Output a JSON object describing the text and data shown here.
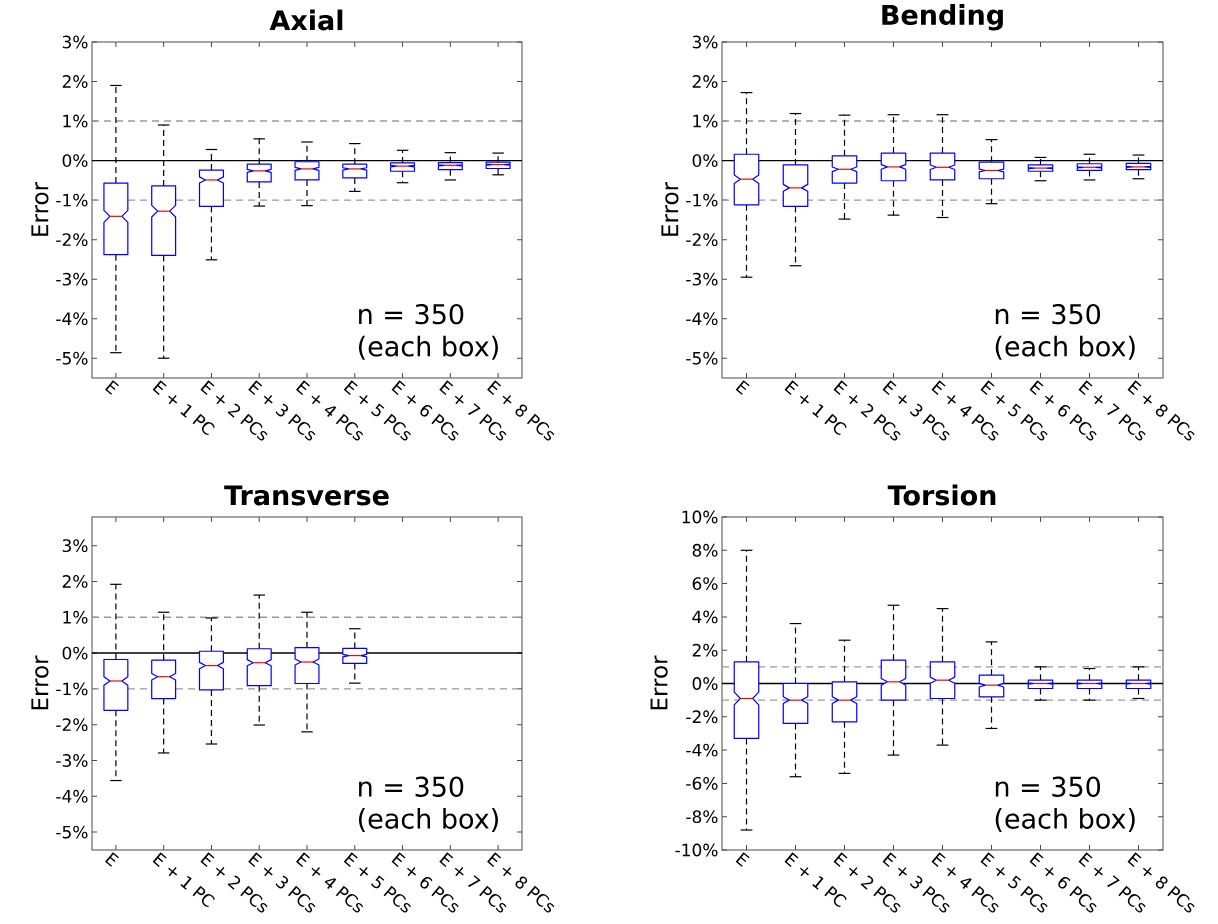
{
  "chart_data": [
    {
      "type": "box",
      "title": "Axial",
      "ylabel": "Error",
      "color": "#0000ff",
      "categories": [
        "E",
        "E + 1 PC",
        "E + 2 PCs",
        "E + 3 PCs",
        "E + 4 PCs",
        "E + 5 PCs",
        "E + 6 PCs",
        "E + 7 PCs",
        "E + 8 PCs"
      ],
      "boxes": [
        {
          "low": -4.86,
          "q1": -2.38,
          "median": -1.41,
          "q3": -0.57,
          "high": 1.9
        },
        {
          "low": -5.0,
          "q1": -2.4,
          "median": -1.28,
          "q3": -0.64,
          "high": 0.9
        },
        {
          "low": -2.51,
          "q1": -1.16,
          "median": -0.49,
          "q3": -0.24,
          "high": 0.28
        },
        {
          "low": -1.15,
          "q1": -0.54,
          "median": -0.26,
          "q3": -0.09,
          "high": 0.55
        },
        {
          "low": -1.14,
          "q1": -0.49,
          "median": -0.21,
          "q3": -0.03,
          "high": 0.47
        },
        {
          "low": -0.78,
          "q1": -0.44,
          "median": -0.21,
          "q3": -0.09,
          "high": 0.43
        },
        {
          "low": -0.56,
          "q1": -0.27,
          "median": -0.14,
          "q3": -0.06,
          "high": 0.26
        },
        {
          "low": -0.49,
          "q1": -0.23,
          "median": -0.12,
          "q3": -0.05,
          "high": 0.2
        },
        {
          "low": -0.36,
          "q1": -0.2,
          "median": -0.1,
          "q3": -0.04,
          "high": 0.19
        }
      ],
      "ylim": [
        -5.5,
        3
      ],
      "yticks": [
        {
          "value": -5,
          "label": "-5%"
        },
        {
          "value": -4,
          "label": "-4%"
        },
        {
          "value": -3,
          "label": "-3%"
        },
        {
          "value": -2,
          "label": "-2%"
        },
        {
          "value": -1,
          "label": "-1%"
        },
        {
          "value": 0,
          "label": "0%"
        },
        {
          "value": 1,
          "label": "1%"
        },
        {
          "value": 2,
          "label": "2%"
        },
        {
          "value": 3,
          "label": "3%"
        }
      ],
      "ref_lines": [
        {
          "axis": "y",
          "value": 1,
          "color": "#999999",
          "line_style": "dashed"
        },
        {
          "axis": "y",
          "value": -1,
          "color": "#999999",
          "line_style": "dashed"
        },
        {
          "axis": "y",
          "value": 0,
          "color": "#000000",
          "line_style": "solid"
        }
      ],
      "annotations": [
        "n = 350",
        "(each box)"
      ]
    },
    {
      "type": "box",
      "title": "Bending",
      "ylabel": "Error",
      "color": "#0000ff",
      "categories": [
        "E",
        "E + 1 PC",
        "E + 2 PCs",
        "E + 3 PCs",
        "E + 4 PCs",
        "E + 5 PCs",
        "E + 6 PCs",
        "E + 7 PCs",
        "E + 8 PCs"
      ],
      "boxes": [
        {
          "low": -2.95,
          "q1": -1.12,
          "median": -0.47,
          "q3": 0.16,
          "high": 1.72
        },
        {
          "low": -2.66,
          "q1": -1.16,
          "median": -0.69,
          "q3": -0.11,
          "high": 1.19
        },
        {
          "low": -1.48,
          "q1": -0.57,
          "median": -0.22,
          "q3": 0.12,
          "high": 1.15
        },
        {
          "low": -1.38,
          "q1": -0.51,
          "median": -0.16,
          "q3": 0.19,
          "high": 1.16
        },
        {
          "low": -1.44,
          "q1": -0.49,
          "median": -0.17,
          "q3": 0.19,
          "high": 1.16
        },
        {
          "low": -1.09,
          "q1": -0.46,
          "median": -0.25,
          "q3": -0.04,
          "high": 0.53
        },
        {
          "low": -0.51,
          "q1": -0.27,
          "median": -0.19,
          "q3": -0.11,
          "high": 0.08
        },
        {
          "low": -0.49,
          "q1": -0.25,
          "median": -0.17,
          "q3": -0.08,
          "high": 0.16
        },
        {
          "low": -0.46,
          "q1": -0.23,
          "median": -0.16,
          "q3": -0.07,
          "high": 0.14
        }
      ],
      "ylim": [
        -5.5,
        3
      ],
      "yticks": [
        {
          "value": -5,
          "label": "-5%"
        },
        {
          "value": -4,
          "label": "-4%"
        },
        {
          "value": -3,
          "label": "-3%"
        },
        {
          "value": -2,
          "label": "-2%"
        },
        {
          "value": -1,
          "label": "-1%"
        },
        {
          "value": 0,
          "label": "0%"
        },
        {
          "value": 1,
          "label": "1%"
        },
        {
          "value": 2,
          "label": "2%"
        },
        {
          "value": 3,
          "label": "3%"
        }
      ],
      "ref_lines": [
        {
          "axis": "y",
          "value": 1,
          "color": "#999999",
          "line_style": "dashed"
        },
        {
          "axis": "y",
          "value": -1,
          "color": "#999999",
          "line_style": "dashed"
        },
        {
          "axis": "y",
          "value": 0,
          "color": "#000000",
          "line_style": "solid"
        }
      ],
      "annotations": [
        "n = 350",
        "(each box)"
      ]
    },
    {
      "type": "box",
      "title": "Transverse",
      "ylabel": "Error",
      "color": "#0000ff",
      "categories": [
        "E",
        "E + 1 PC",
        "E + 2 PCs",
        "E + 3 PCs",
        "E + 4 PCs",
        "E + 5 PCs",
        "E + 6 PCs",
        "E + 7 PCs",
        "E + 8 PCs"
      ],
      "boxes": [
        {
          "low": -3.56,
          "q1": -1.6,
          "median": -0.78,
          "q3": -0.18,
          "high": 1.92
        },
        {
          "low": -2.79,
          "q1": -1.27,
          "median": -0.66,
          "q3": -0.2,
          "high": 1.14
        },
        {
          "low": -2.54,
          "q1": -1.03,
          "median": -0.35,
          "q3": 0.05,
          "high": 0.98
        },
        {
          "low": -2.01,
          "q1": -0.91,
          "median": -0.27,
          "q3": 0.12,
          "high": 1.62
        },
        {
          "low": -2.2,
          "q1": -0.85,
          "median": -0.25,
          "q3": 0.15,
          "high": 1.14
        },
        {
          "low": -0.84,
          "q1": -0.29,
          "median": -0.07,
          "q3": 0.13,
          "high": 0.68
        },
        null,
        null,
        null
      ],
      "ylim": [
        -5.5,
        3.8
      ],
      "yticks": [
        {
          "value": -5,
          "label": "-5%"
        },
        {
          "value": -4,
          "label": "-4%"
        },
        {
          "value": -3,
          "label": "-3%"
        },
        {
          "value": -2,
          "label": "-2%"
        },
        {
          "value": -1,
          "label": "-1%"
        },
        {
          "value": 0,
          "label": "0%"
        },
        {
          "value": 1,
          "label": "1%"
        },
        {
          "value": 2,
          "label": "2%"
        },
        {
          "value": 3,
          "label": "3%"
        }
      ],
      "ref_lines": [
        {
          "axis": "y",
          "value": 1,
          "color": "#999999",
          "line_style": "dashed"
        },
        {
          "axis": "y",
          "value": -1,
          "color": "#999999",
          "line_style": "dashed"
        },
        {
          "axis": "y",
          "value": 0,
          "color": "#000000",
          "line_style": "solid"
        }
      ],
      "annotations": [
        "n = 350",
        "(each box)"
      ]
    },
    {
      "type": "box",
      "title": "Torsion",
      "ylabel": "Error",
      "color": "#0000ff",
      "categories": [
        "E",
        "E + 1 PC",
        "E + 2 PCs",
        "E + 3 PCs",
        "E + 4 PCs",
        "E + 5 PCs",
        "E + 6 PCs",
        "E + 7 PCs",
        "E + 8 PCs"
      ],
      "boxes": [
        {
          "low": -8.8,
          "q1": -3.3,
          "median": -0.9,
          "q3": 1.3,
          "high": 8.0
        },
        {
          "low": -5.6,
          "q1": -2.4,
          "median": -1.0,
          "q3": 0.0,
          "high": 3.6
        },
        {
          "low": -5.4,
          "q1": -2.3,
          "median": -1.0,
          "q3": 0.1,
          "high": 2.6
        },
        {
          "low": -4.3,
          "q1": -1.0,
          "median": 0.1,
          "q3": 1.4,
          "high": 4.7
        },
        {
          "low": -3.7,
          "q1": -0.9,
          "median": 0.2,
          "q3": 1.3,
          "high": 4.5
        },
        {
          "low": -2.7,
          "q1": -0.8,
          "median": -0.1,
          "q3": 0.5,
          "high": 2.5
        },
        {
          "low": -1.0,
          "q1": -0.3,
          "median": 0.0,
          "q3": 0.2,
          "high": 1.0
        },
        {
          "low": -1.0,
          "q1": -0.3,
          "median": 0.0,
          "q3": 0.2,
          "high": 0.9
        },
        {
          "low": -0.9,
          "q1": -0.3,
          "median": 0.0,
          "q3": 0.2,
          "high": 1.0
        }
      ],
      "ylim": [
        -10,
        10
      ],
      "yticks": [
        {
          "value": -10,
          "label": "-10%"
        },
        {
          "value": -8,
          "label": "-8%"
        },
        {
          "value": -6,
          "label": "-6%"
        },
        {
          "value": -4,
          "label": "-4%"
        },
        {
          "value": -2,
          "label": "-2%"
        },
        {
          "value": 0,
          "label": "0%"
        },
        {
          "value": 2,
          "label": "2%"
        },
        {
          "value": 4,
          "label": "4%"
        },
        {
          "value": 6,
          "label": "6%"
        },
        {
          "value": 8,
          "label": "8%"
        },
        {
          "value": 10,
          "label": "10%"
        }
      ],
      "ref_lines": [
        {
          "axis": "y",
          "value": 1,
          "color": "#999999",
          "line_style": "dashed"
        },
        {
          "axis": "y",
          "value": -1,
          "color": "#999999",
          "line_style": "dashed"
        },
        {
          "axis": "y",
          "value": 0,
          "color": "#000000",
          "line_style": "solid"
        }
      ],
      "annotations": [
        "n = 350",
        "(each box)"
      ]
    }
  ]
}
